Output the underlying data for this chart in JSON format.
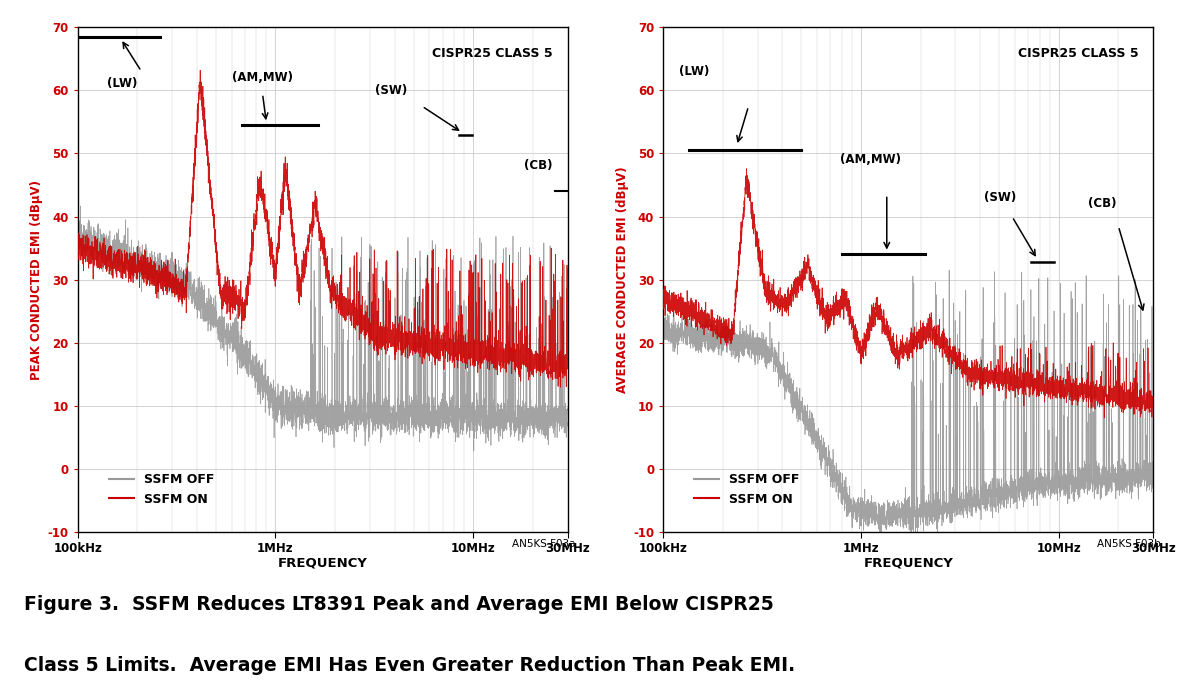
{
  "ylabel_left": "PEAK CONDUCTED EMI (dBμV)",
  "ylabel_right": "AVERAGE CONDUCTED EMI (dBμV)",
  "xlabel": "FREQUENCY",
  "ylim": [
    -10,
    70
  ],
  "yticks": [
    -10,
    0,
    10,
    20,
    30,
    40,
    50,
    60,
    70
  ],
  "xtick_positions": [
    100000,
    1000000,
    10000000,
    30000000
  ],
  "xtick_labels": [
    "100kHz",
    "1MHz",
    "10MHz",
    "30MHz"
  ],
  "cispr_label": "CISPR25 CLASS 5",
  "legend_off": "SSFM OFF",
  "legend_on": "SSFM ON",
  "color_off": "#999999",
  "color_on": "#cc0000",
  "figure_note_left": "AN5KS F03a",
  "figure_note_right": "AN5KS F03b",
  "caption_line1": "Figure 3.  SSFM Reduces LT8391 Peak and Average EMI Below CISPR25",
  "caption_line2": "Class 5 Limits.  Average EMI Has Even Greater Reduction Than Peak EMI.",
  "background_color": "#ffffff",
  "grid_color": "#cccccc",
  "ylabel_color": "#cc0000"
}
